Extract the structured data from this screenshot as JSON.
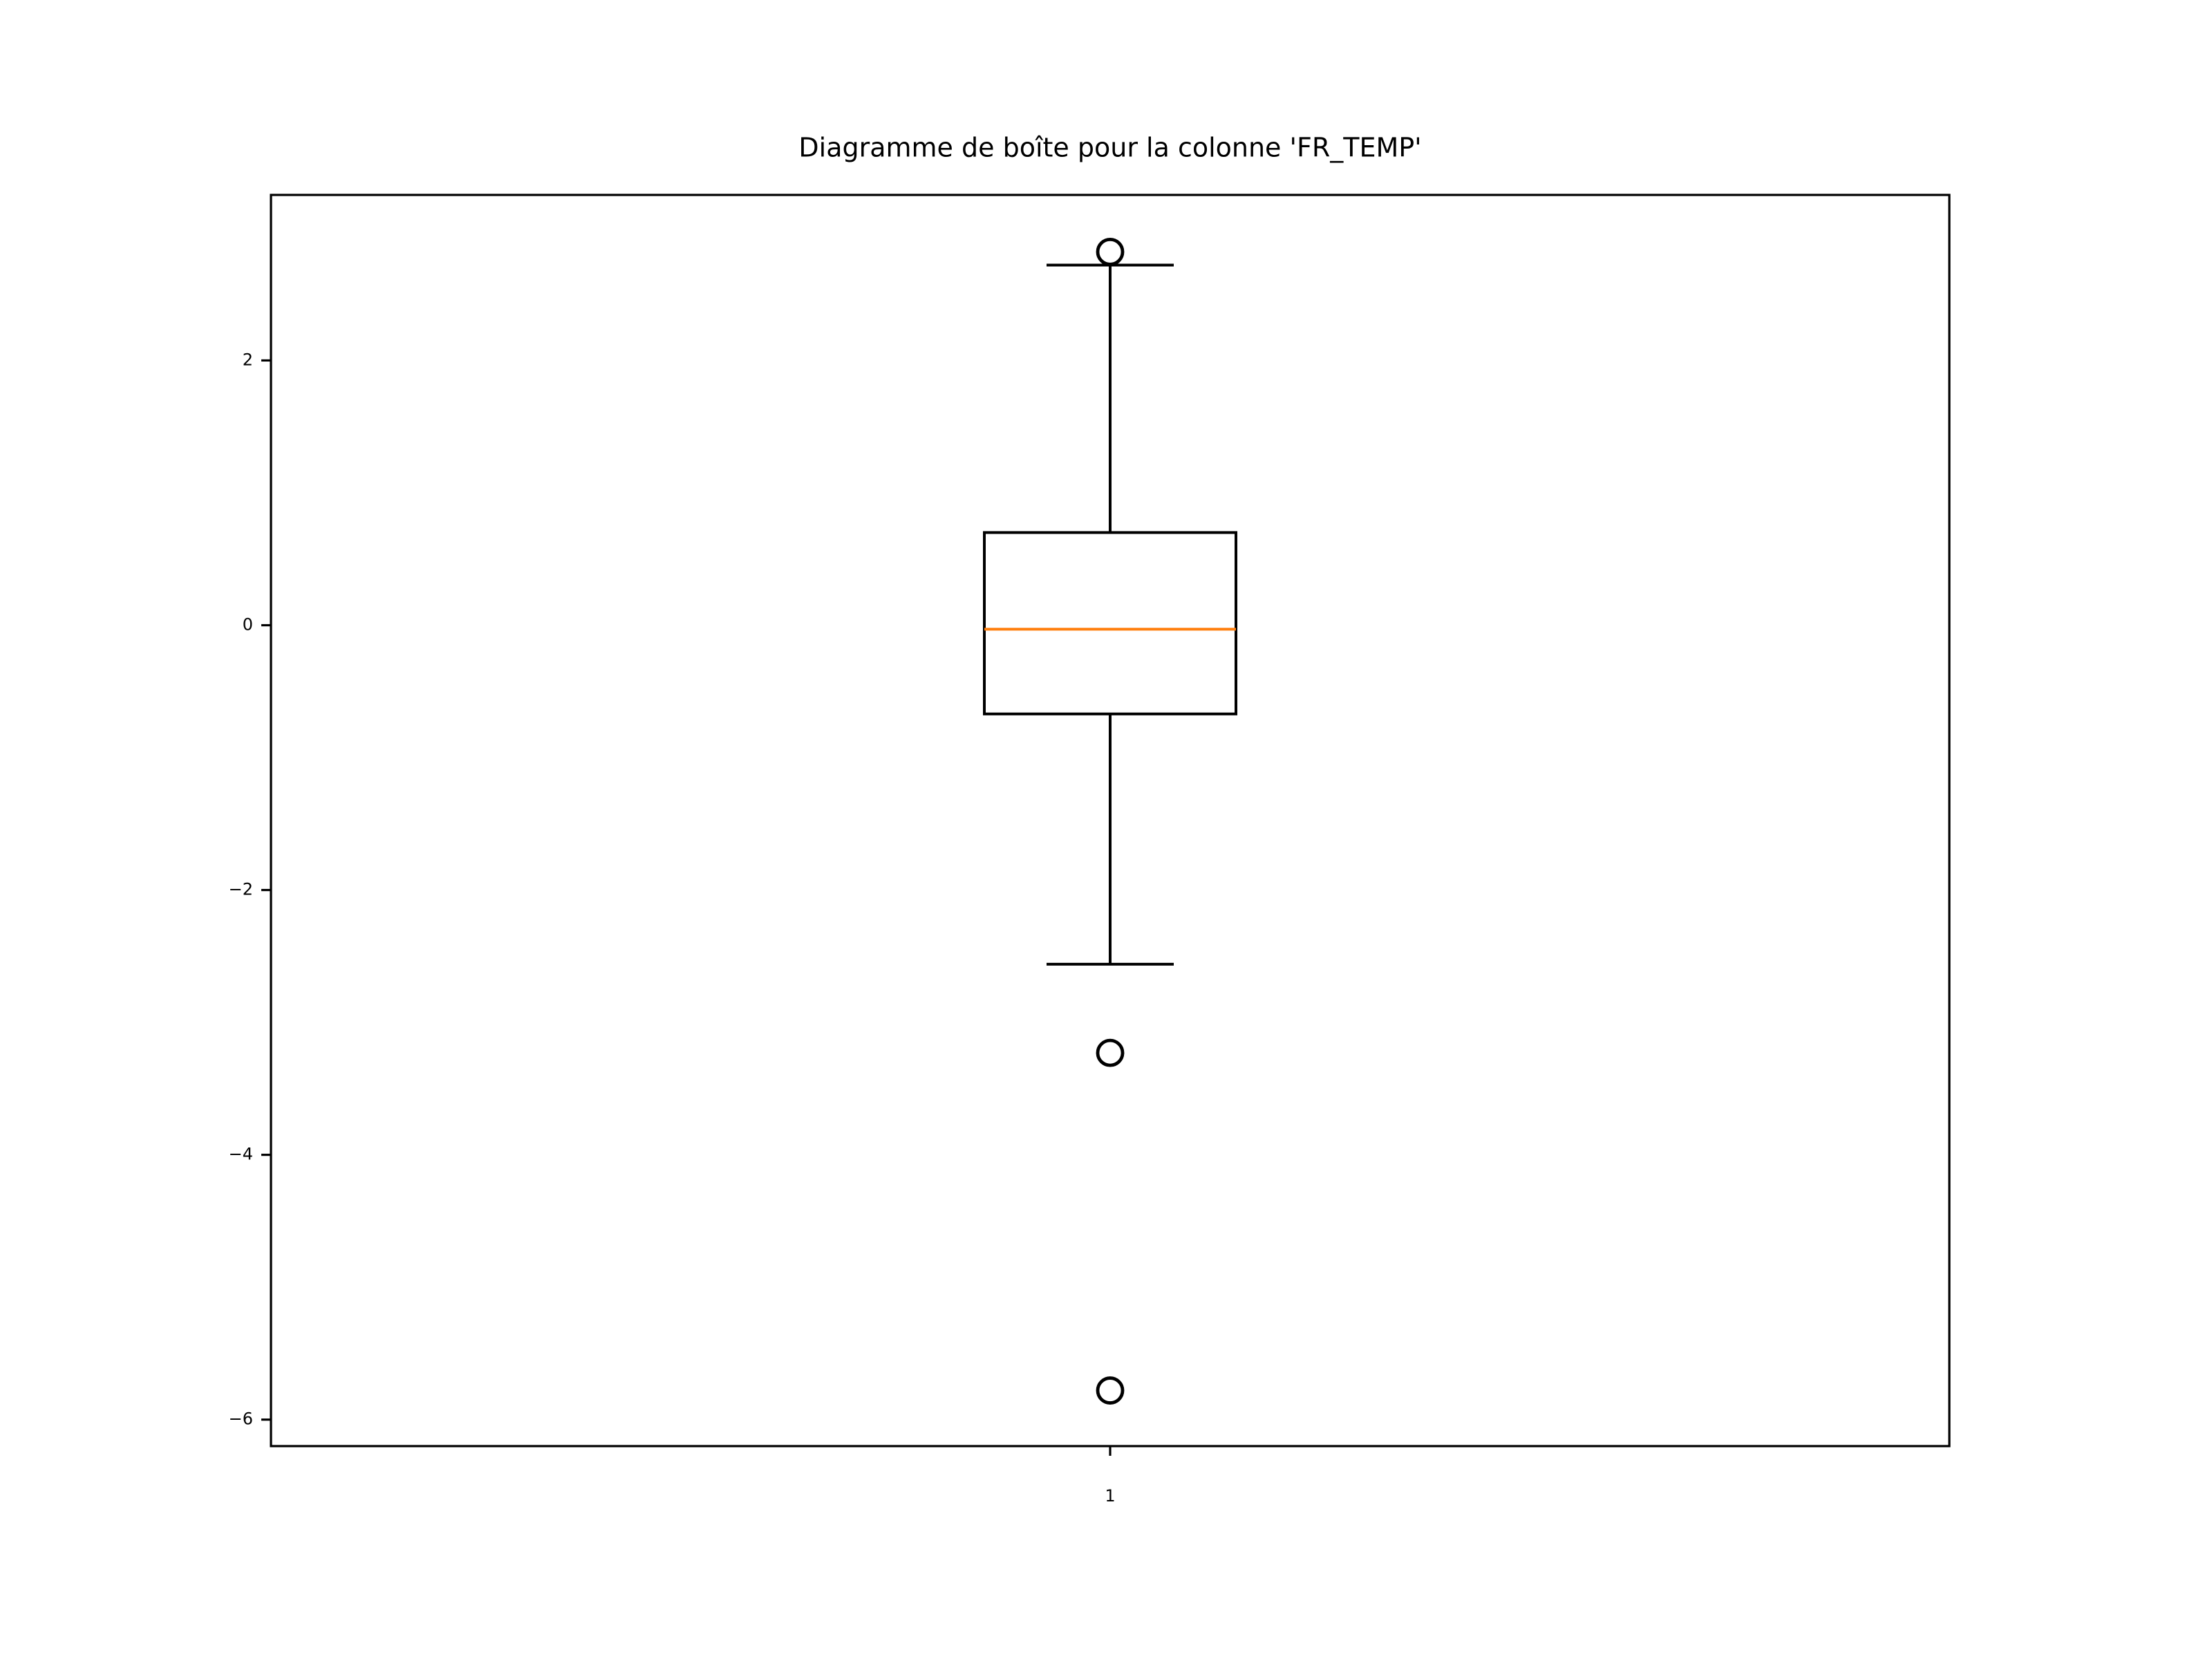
{
  "chart_data": {
    "type": "box",
    "title": "Diagramme de boîte pour la colonne 'FR_TEMP'",
    "xlabel": "",
    "ylabel": "",
    "categories": [
      "1"
    ],
    "ylim": [
      -6.2,
      3.25
    ],
    "yticks": [
      {
        "value": 2,
        "label": "2"
      },
      {
        "value": 0,
        "label": "0"
      },
      {
        "value": -2,
        "label": "−2"
      },
      {
        "value": -4,
        "label": "−4"
      },
      {
        "value": -6,
        "label": "−6"
      }
    ],
    "boxes": [
      {
        "name": "1",
        "whisker_high": 2.72,
        "q3": 0.7,
        "median": -0.03,
        "q1": -0.67,
        "whisker_low": -2.56,
        "outliers": [
          2.82,
          -3.23,
          -5.78
        ]
      }
    ],
    "grid": false,
    "colors": {
      "box": "#000000",
      "median": "#ff7f0e",
      "outlier": "#000000"
    }
  }
}
